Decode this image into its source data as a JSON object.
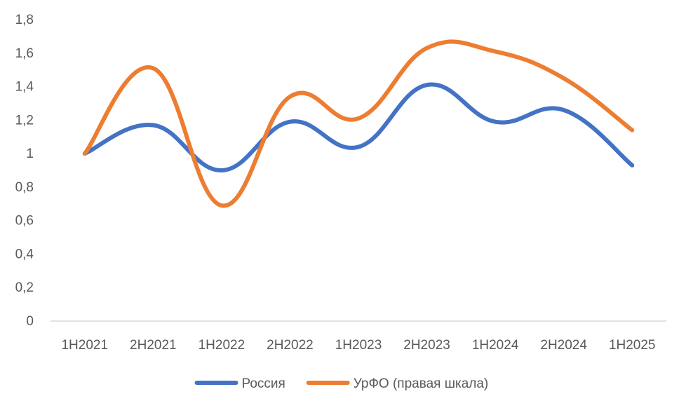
{
  "chart_data": {
    "type": "line",
    "title": "",
    "xlabel": "",
    "ylabel": "",
    "categories": [
      "1H2021",
      "2H2021",
      "1H2022",
      "2H2022",
      "1H2023",
      "2H2023",
      "1H2024",
      "2H2024",
      "1H2025"
    ],
    "y_ticks": [
      "0",
      "0,2",
      "0,4",
      "0,6",
      "0,8",
      "1",
      "1,2",
      "1,4",
      "1,6",
      "1,8"
    ],
    "ylim": [
      0,
      1.8
    ],
    "grid": false,
    "smooth": true,
    "legend_position": "bottom",
    "series": [
      {
        "name": "Россия",
        "color": "#4472C4",
        "values": [
          1.0,
          1.17,
          0.9,
          1.19,
          1.04,
          1.41,
          1.19,
          1.26,
          0.93
        ]
      },
      {
        "name": "УрФО (правая шкала)",
        "color": "#ED7D31",
        "values": [
          1.0,
          1.51,
          0.69,
          1.34,
          1.21,
          1.63,
          1.61,
          1.45,
          1.14
        ]
      }
    ]
  }
}
